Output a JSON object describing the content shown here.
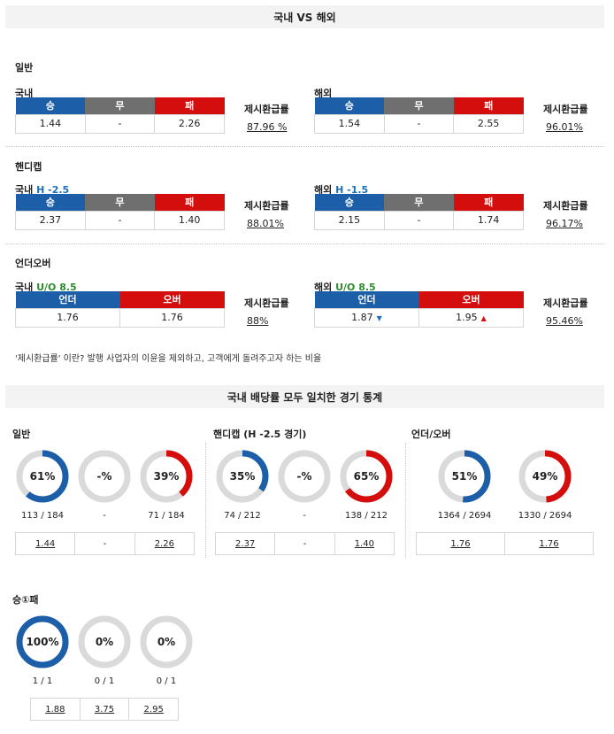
{
  "header": {
    "title": "국내 VS 해외"
  },
  "ret_label": "제시환급률",
  "sections": [
    {
      "label": "일반",
      "domestic": {
        "name": "국내",
        "suffix": "",
        "cols": [
          "승",
          "무",
          "패"
        ],
        "vals": [
          "1.44",
          "-",
          "2.26"
        ],
        "ret": "87.96 %"
      },
      "overseas": {
        "name": "해외",
        "suffix": "",
        "cols": [
          "승",
          "무",
          "패"
        ],
        "vals": [
          "1.54",
          "-",
          "2.55"
        ],
        "ret": "96.01%"
      }
    },
    {
      "label": "핸디캡",
      "domestic": {
        "name": "국내",
        "suffix": "H -2.5",
        "cols": [
          "승",
          "무",
          "패"
        ],
        "vals": [
          "2.37",
          "-",
          "1.40"
        ],
        "ret": "88.01%"
      },
      "overseas": {
        "name": "해외",
        "suffix": "H -1.5",
        "cols": [
          "승",
          "무",
          "패"
        ],
        "vals": [
          "2.15",
          "-",
          "1.74"
        ],
        "ret": "96.17%"
      }
    },
    {
      "label": "언더오버",
      "domestic": {
        "name": "국내",
        "suffix": "U/O 8.5",
        "cols": [
          "언더",
          "오버"
        ],
        "vals": [
          "1.76",
          "1.76"
        ],
        "ret": "88%"
      },
      "overseas": {
        "name": "해외",
        "suffix": "U/O 8.5",
        "cols": [
          "언더",
          "오버"
        ],
        "vals": [
          "1.87",
          "1.95"
        ],
        "ret": "95.46%",
        "trend": [
          "down",
          "up"
        ]
      }
    }
  ],
  "note": "'제시환급률' 이란? 발행 사업자의 이윤을 제외하고, 고객에게 돌려주고자 하는 비율",
  "stats_header": {
    "title": "국내 배당률 모두 일치한 경기 통계"
  },
  "stats": [
    {
      "label": "일반",
      "rings": [
        {
          "pct": "61%",
          "value": 61,
          "color": "blue",
          "count": "113 / 184"
        },
        {
          "pct": "-%",
          "value": 0,
          "color": "none",
          "count": "-"
        },
        {
          "pct": "39%",
          "value": 39,
          "color": "red",
          "count": "71 / 184"
        }
      ],
      "odds": [
        "1.44",
        "-",
        "2.26"
      ]
    },
    {
      "label": "핸디캡 (H -2.5 경기)",
      "rings": [
        {
          "pct": "35%",
          "value": 35,
          "color": "blue",
          "count": "74 / 212"
        },
        {
          "pct": "-%",
          "value": 0,
          "color": "none",
          "count": "-"
        },
        {
          "pct": "65%",
          "value": 65,
          "color": "red",
          "count": "138 / 212"
        }
      ],
      "odds": [
        "2.37",
        "-",
        "1.40"
      ]
    },
    {
      "label": "언더/오버",
      "rings": [
        {
          "pct": "51%",
          "value": 51,
          "color": "blue",
          "count": "1364 / 2694"
        },
        {
          "pct": "49%",
          "value": 49,
          "color": "red",
          "count": "1330 / 2694"
        }
      ],
      "odds": [
        "1.76",
        "1.76"
      ]
    },
    {
      "label": "승①패",
      "rings": [
        {
          "pct": "100%",
          "value": 100,
          "color": "blue",
          "count": "1 / 1"
        },
        {
          "pct": "0%",
          "value": 0,
          "color": "none",
          "count": "0 / 1"
        },
        {
          "pct": "0%",
          "value": 0,
          "color": "none",
          "count": "0 / 1"
        }
      ],
      "odds": [
        "1.88",
        "3.75",
        "2.95"
      ]
    }
  ],
  "colors": {
    "blue": "#1d5ea8",
    "red": "#d40d0d",
    "grey": "#6f6f6f",
    "ring_track": "#dadada"
  }
}
